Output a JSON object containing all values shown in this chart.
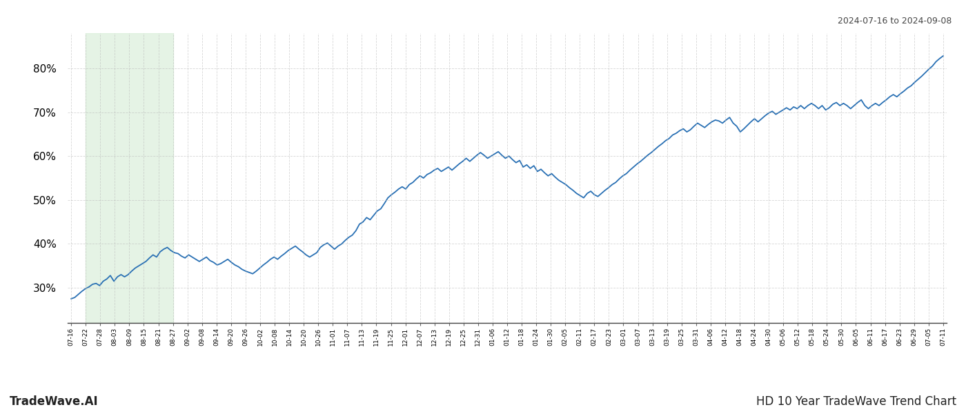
{
  "title_right": "2024-07-16 to 2024-09-08",
  "footer_left": "TradeWave.AI",
  "footer_right": "HD 10 Year TradeWave Trend Chart",
  "line_color": "#2970b4",
  "line_width": 1.3,
  "shade_color": "#d4ecd4",
  "shade_alpha": 0.6,
  "background_color": "#ffffff",
  "grid_color": "#bbbbbb",
  "grid_style": "--",
  "grid_alpha": 0.6,
  "ylim": [
    22,
    88
  ],
  "yticks": [
    30,
    40,
    50,
    60,
    70,
    80
  ],
  "x_labels": [
    "07-16",
    "07-22",
    "07-28",
    "08-03",
    "08-09",
    "08-15",
    "08-21",
    "08-27",
    "09-02",
    "09-08",
    "09-14",
    "09-20",
    "09-26",
    "10-02",
    "10-08",
    "10-14",
    "10-20",
    "10-26",
    "11-01",
    "11-07",
    "11-13",
    "11-19",
    "11-25",
    "12-01",
    "12-07",
    "12-13",
    "12-19",
    "12-25",
    "12-31",
    "01-06",
    "01-12",
    "01-18",
    "01-24",
    "01-30",
    "02-05",
    "02-11",
    "02-17",
    "02-23",
    "03-01",
    "03-07",
    "03-13",
    "03-19",
    "03-25",
    "03-31",
    "04-06",
    "04-12",
    "04-18",
    "04-24",
    "04-30",
    "05-06",
    "05-12",
    "05-18",
    "05-24",
    "05-30",
    "06-05",
    "06-11",
    "06-17",
    "06-23",
    "06-29",
    "07-05",
    "07-11"
  ],
  "shade_label_start": "07-22",
  "shade_label_end": "08-27",
  "y_values": [
    27.5,
    27.8,
    28.5,
    29.2,
    29.8,
    30.2,
    30.8,
    31.0,
    30.5,
    31.5,
    32.0,
    32.8,
    31.5,
    32.5,
    33.0,
    32.5,
    33.0,
    33.8,
    34.5,
    35.0,
    35.5,
    36.0,
    36.8,
    37.5,
    37.0,
    38.2,
    38.8,
    39.2,
    38.5,
    38.0,
    37.8,
    37.2,
    36.8,
    37.5,
    37.0,
    36.5,
    36.0,
    36.5,
    37.0,
    36.2,
    35.8,
    35.2,
    35.5,
    36.0,
    36.5,
    35.8,
    35.2,
    34.8,
    34.2,
    33.8,
    33.5,
    33.2,
    33.8,
    34.5,
    35.2,
    35.8,
    36.5,
    37.0,
    36.5,
    37.2,
    37.8,
    38.5,
    39.0,
    39.5,
    38.8,
    38.2,
    37.5,
    37.0,
    37.5,
    38.0,
    39.2,
    39.8,
    40.2,
    39.5,
    38.8,
    39.5,
    40.0,
    40.8,
    41.5,
    42.0,
    43.0,
    44.5,
    45.0,
    46.0,
    45.5,
    46.5,
    47.5,
    48.0,
    49.2,
    50.5,
    51.2,
    51.8,
    52.5,
    53.0,
    52.5,
    53.5,
    54.0,
    54.8,
    55.5,
    55.0,
    55.8,
    56.2,
    56.8,
    57.2,
    56.5,
    57.0,
    57.5,
    56.8,
    57.5,
    58.2,
    58.8,
    59.5,
    58.8,
    59.5,
    60.2,
    60.8,
    60.2,
    59.5,
    60.0,
    60.5,
    61.0,
    60.2,
    59.5,
    60.0,
    59.2,
    58.5,
    59.0,
    57.5,
    58.0,
    57.2,
    57.8,
    56.5,
    57.0,
    56.2,
    55.5,
    56.0,
    55.2,
    54.5,
    54.0,
    53.5,
    52.8,
    52.2,
    51.5,
    51.0,
    50.5,
    51.5,
    52.0,
    51.2,
    50.8,
    51.5,
    52.2,
    52.8,
    53.5,
    54.0,
    54.8,
    55.5,
    56.0,
    56.8,
    57.5,
    58.2,
    58.8,
    59.5,
    60.2,
    60.8,
    61.5,
    62.2,
    62.8,
    63.5,
    64.0,
    64.8,
    65.2,
    65.8,
    66.2,
    65.5,
    66.0,
    66.8,
    67.5,
    67.0,
    66.5,
    67.2,
    67.8,
    68.2,
    68.0,
    67.5,
    68.2,
    68.8,
    67.5,
    66.8,
    65.5,
    66.2,
    67.0,
    67.8,
    68.5,
    67.8,
    68.5,
    69.2,
    69.8,
    70.2,
    69.5,
    70.0,
    70.5,
    71.0,
    70.5,
    71.2,
    70.8,
    71.5,
    70.8,
    71.5,
    72.0,
    71.5,
    70.8,
    71.5,
    70.5,
    71.0,
    71.8,
    72.2,
    71.5,
    72.0,
    71.5,
    70.8,
    71.5,
    72.2,
    72.8,
    71.5,
    70.8,
    71.5,
    72.0,
    71.5,
    72.2,
    72.8,
    73.5,
    74.0,
    73.5,
    74.2,
    74.8,
    75.5,
    76.0,
    76.8,
    77.5,
    78.2,
    79.0,
    79.8,
    80.5,
    81.5,
    82.2,
    82.8
  ]
}
